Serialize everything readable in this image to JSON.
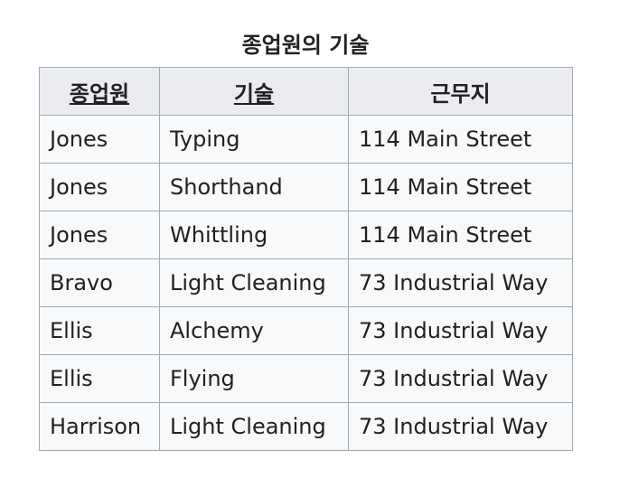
{
  "table": {
    "caption": "종업원의 기술",
    "headers": [
      "종업원",
      "기술",
      "근무지"
    ],
    "rows": [
      [
        "Jones",
        "Typing",
        "114 Main Street"
      ],
      [
        "Jones",
        "Shorthand",
        "114 Main Street"
      ],
      [
        "Jones",
        "Whittling",
        "114 Main Street"
      ],
      [
        "Bravo",
        "Light Cleaning",
        "73 Industrial Way"
      ],
      [
        "Ellis",
        "Alchemy",
        "73 Industrial Way"
      ],
      [
        "Ellis",
        "Flying",
        "73 Industrial Way"
      ],
      [
        "Harrison",
        "Light Cleaning",
        "73 Industrial Way"
      ]
    ]
  }
}
